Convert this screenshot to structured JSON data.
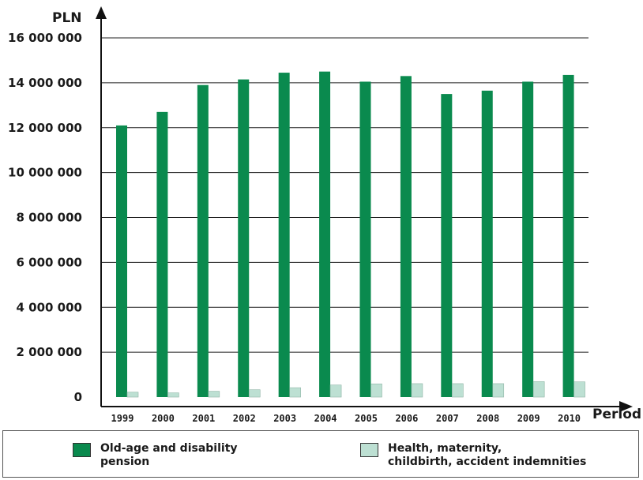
{
  "chart_data": {
    "type": "bar",
    "categories": [
      "1999",
      "2000",
      "2001",
      "2002",
      "2003",
      "2004",
      "2005",
      "2006",
      "2007",
      "2008",
      "2009",
      "2010"
    ],
    "series": [
      {
        "name": "Old-age and disability pension",
        "color": "#0a8a4e",
        "values": [
          12100000,
          12700000,
          13900000,
          14150000,
          14450000,
          14500000,
          14050000,
          14300000,
          13500000,
          13650000,
          14050000,
          14350000
        ]
      },
      {
        "name": "Health, maternity, childbirth, accident indemnities",
        "color": "#bde0d3",
        "values": [
          220000,
          190000,
          260000,
          330000,
          420000,
          540000,
          590000,
          600000,
          600000,
          600000,
          690000,
          680000
        ]
      }
    ],
    "yticks": [
      "0",
      "2 000 000",
      "4 000 000",
      "6 000 000",
      "8 000 000",
      "10 000 000",
      "12 000 000",
      "14 000 000",
      "16 000 000"
    ],
    "ylim": [
      0,
      16000000
    ],
    "ylabel": "PLN",
    "xlabel": "Period",
    "grid": true,
    "legend_position": "bottom"
  },
  "legend": {
    "item1": {
      "line1": "Old-age and disability",
      "line2": "pension"
    },
    "item2": {
      "line1": "Health, maternity,",
      "line2": "childbirth, accident indemnities"
    }
  }
}
